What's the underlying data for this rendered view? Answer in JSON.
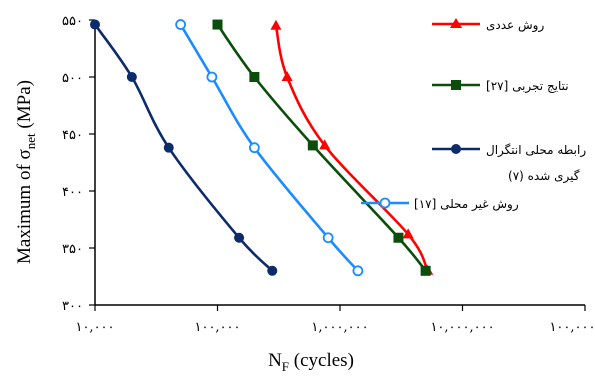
{
  "chart_data": {
    "type": "line",
    "xscale": "log",
    "xlim": [
      10000,
      100000000
    ],
    "ylim": [
      300,
      550
    ],
    "xlabel_main": "N",
    "xlabel_sub": "F",
    "xlabel_rest": " (cycles)",
    "ylabel_main": "Maximum of σ",
    "ylabel_sub": "net",
    "ylabel_rest": " (MPa)",
    "x_ticks": [
      10000,
      100000,
      1000000,
      10000000,
      100000000
    ],
    "x_tick_labels": [
      "۱۰,۰۰۰",
      "۱۰۰,۰۰۰",
      "۱,۰۰۰,۰۰۰",
      "۱۰,۰۰۰,۰۰۰",
      "۱۰۰,۰۰۰,۰۰۰"
    ],
    "y_ticks": [
      300,
      350,
      400,
      450,
      500,
      550
    ],
    "y_tick_labels": [
      "۳۰۰",
      "۳۵۰",
      "۴۰۰",
      "۴۵۰",
      "۵۰۰",
      "۵۵۰"
    ],
    "grid": false,
    "legend_position": "right",
    "series": [
      {
        "name": "روش عددی",
        "color": "#ff0000",
        "marker": "triangle",
        "filled": true,
        "x": [
          300000,
          370000,
          750000,
          3600000,
          5200000
        ],
        "y": [
          545,
          500,
          440,
          362,
          330
        ]
      },
      {
        "name": "نتایج تجربی [۲۷]",
        "color": "#0b4d0b",
        "marker": "square",
        "filled": true,
        "x": [
          100000,
          200000,
          600000,
          3000000,
          5000000
        ],
        "y": [
          546,
          500,
          440,
          359,
          330
        ]
      },
      {
        "name_line1": "رابطه محلی انتگرال",
        "name_line2": "گیری شده (۷)",
        "color": "#0d2b6b",
        "marker": "circle",
        "filled": true,
        "x": [
          10000,
          20000,
          40000,
          150000,
          280000
        ],
        "y": [
          546,
          500,
          438,
          359,
          330
        ]
      },
      {
        "name": "روش غیر محلی [۱۷]",
        "color": "#1a8cff",
        "marker": "circle",
        "filled": false,
        "x": [
          50000,
          90000,
          200000,
          800000,
          1400000
        ],
        "y": [
          546,
          500,
          438,
          359,
          330
        ]
      }
    ]
  }
}
